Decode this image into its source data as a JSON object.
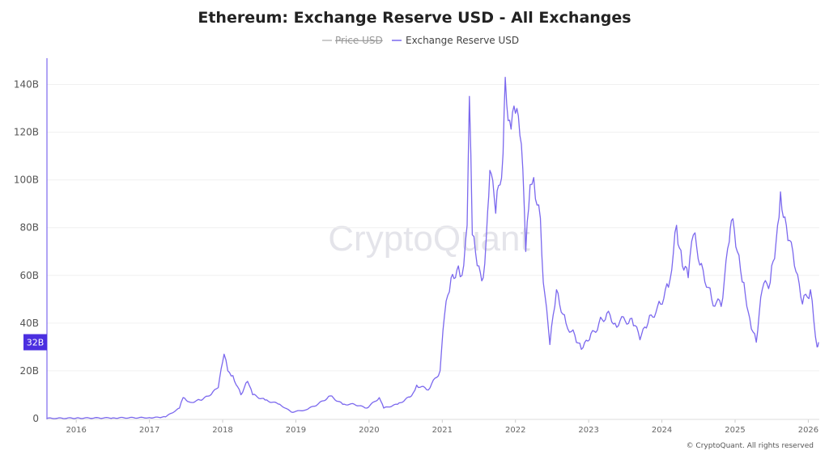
{
  "chart_data": {
    "type": "line",
    "title": "Ethereum: Exchange Reserve USD - All Exchanges",
    "legend": [
      {
        "label": "Price USD",
        "color": "#aaaaaa",
        "hidden": true
      },
      {
        "label": "Exchange Reserve USD",
        "color": "#7b68ee",
        "hidden": false
      }
    ],
    "legend_placement": "top-center",
    "xlabel": "",
    "ylabel": "",
    "xlim": [
      2015.6,
      2026.15
    ],
    "ylim": [
      0,
      151
    ],
    "x_ticks": [
      "2016",
      "2017",
      "2018",
      "2019",
      "2020",
      "2021",
      "2022",
      "2023",
      "2024",
      "2025",
      "2026"
    ],
    "y_ticks": [
      {
        "v": 0,
        "label": "0"
      },
      {
        "v": 20,
        "label": "20B"
      },
      {
        "v": 40,
        "label": "40B"
      },
      {
        "v": 60,
        "label": "60B"
      },
      {
        "v": 80,
        "label": "80B"
      },
      {
        "v": 100,
        "label": "100B"
      },
      {
        "v": 120,
        "label": "120B"
      },
      {
        "v": 140,
        "label": "140B"
      }
    ],
    "grid": true,
    "current_value_label": "32B",
    "current_value": 32,
    "watermark": "CryptoQuant",
    "copyright": "© CryptoQuant. All rights reserved",
    "series": [
      {
        "name": "Exchange Reserve USD",
        "unit": "B USD",
        "points": [
          [
            2015.6,
            0.1
          ],
          [
            2016.0,
            0.2
          ],
          [
            2016.5,
            0.3
          ],
          [
            2017.0,
            0.4
          ],
          [
            2017.13,
            0.5
          ],
          [
            2017.22,
            0.7
          ],
          [
            2017.41,
            4.4
          ],
          [
            2017.46,
            8.8
          ],
          [
            2017.56,
            6.8
          ],
          [
            2017.69,
            7.8
          ],
          [
            2017.82,
            9.5
          ],
          [
            2017.94,
            13
          ],
          [
            2018.02,
            27
          ],
          [
            2018.07,
            20
          ],
          [
            2018.14,
            18
          ],
          [
            2018.25,
            10
          ],
          [
            2018.34,
            15.6
          ],
          [
            2018.41,
            10
          ],
          [
            2018.58,
            7.8
          ],
          [
            2018.78,
            6
          ],
          [
            2018.94,
            2.7
          ],
          [
            2019.14,
            3.7
          ],
          [
            2019.3,
            6
          ],
          [
            2019.47,
            9.5
          ],
          [
            2019.64,
            6
          ],
          [
            2019.8,
            6
          ],
          [
            2019.97,
            4.4
          ],
          [
            2020.14,
            8.8
          ],
          [
            2020.2,
            4.4
          ],
          [
            2020.39,
            6
          ],
          [
            2020.58,
            9.5
          ],
          [
            2020.65,
            14
          ],
          [
            2020.81,
            12
          ],
          [
            2020.97,
            20
          ],
          [
            2021.03,
            43
          ],
          [
            2021.12,
            59
          ],
          [
            2021.22,
            64
          ],
          [
            2021.27,
            60
          ],
          [
            2021.34,
            81
          ],
          [
            2021.37,
            135
          ],
          [
            2021.41,
            77
          ],
          [
            2021.5,
            64
          ],
          [
            2021.56,
            59
          ],
          [
            2021.62,
            87
          ],
          [
            2021.65,
            104
          ],
          [
            2021.73,
            86
          ],
          [
            2021.83,
            111
          ],
          [
            2021.86,
            143
          ],
          [
            2021.92,
            125
          ],
          [
            2021.98,
            131
          ],
          [
            2022.08,
            115
          ],
          [
            2022.14,
            70
          ],
          [
            2022.2,
            98
          ],
          [
            2022.25,
            101
          ],
          [
            2022.34,
            84
          ],
          [
            2022.38,
            57
          ],
          [
            2022.47,
            31
          ],
          [
            2022.56,
            54
          ],
          [
            2022.69,
            40
          ],
          [
            2022.81,
            35
          ],
          [
            2022.9,
            29
          ],
          [
            2023.01,
            33
          ],
          [
            2023.14,
            40
          ],
          [
            2023.27,
            45
          ],
          [
            2023.36,
            40
          ],
          [
            2023.59,
            42
          ],
          [
            2023.7,
            33
          ],
          [
            2023.81,
            40
          ],
          [
            2023.94,
            47
          ],
          [
            2024.09,
            55
          ],
          [
            2024.2,
            81
          ],
          [
            2024.28,
            64
          ],
          [
            2024.36,
            59
          ],
          [
            2024.43,
            77
          ],
          [
            2024.54,
            65
          ],
          [
            2024.68,
            50
          ],
          [
            2024.81,
            47
          ],
          [
            2024.92,
            74
          ],
          [
            2024.95,
            83
          ],
          [
            2025.03,
            70
          ],
          [
            2025.12,
            57
          ],
          [
            2025.2,
            42
          ],
          [
            2025.29,
            32
          ],
          [
            2025.37,
            54
          ],
          [
            2025.48,
            57
          ],
          [
            2025.56,
            74
          ],
          [
            2025.62,
            95
          ],
          [
            2025.7,
            81
          ],
          [
            2025.81,
            64
          ],
          [
            2025.92,
            48
          ],
          [
            2026.03,
            54
          ],
          [
            2026.12,
            30
          ],
          [
            2026.14,
            32
          ]
        ]
      }
    ]
  },
  "colors": {
    "line": "#7b68ee",
    "axis": "#7b68ee",
    "badge": "#4b2fe0",
    "grid": "#f0f0f0"
  }
}
